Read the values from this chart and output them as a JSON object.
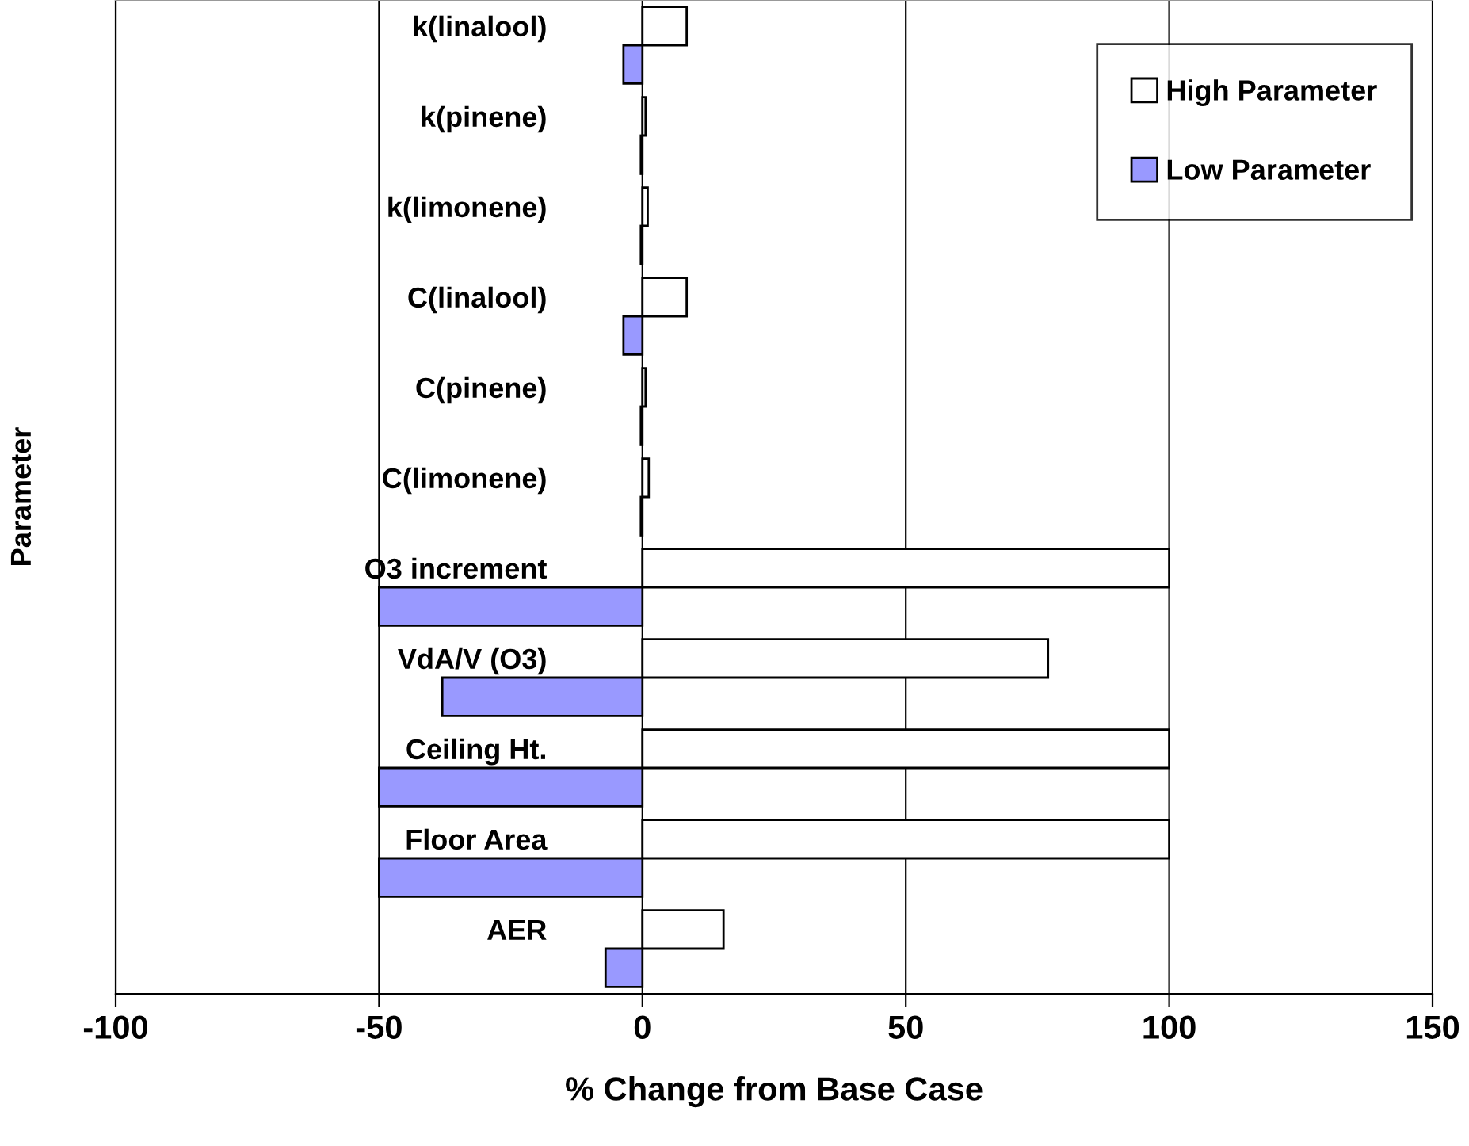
{
  "chart_data": {
    "type": "bar",
    "orientation": "horizontal",
    "xlabel": "% Change from Base Case",
    "ylabel": "Parameter",
    "categories": [
      "k(linalool)",
      "k(pinene)",
      "k(limonene)",
      "C(linalool)",
      "C(pinene)",
      "C(limonene)",
      "O3 increment",
      "VdA/V (O3)",
      "Ceiling Ht.",
      "Floor Area",
      "AER"
    ],
    "series": [
      {
        "name": "High Parameter",
        "color": "#ffffff",
        "values": [
          8.4,
          0.6,
          1,
          8.4,
          0.6,
          1.2,
          100,
          77,
          100,
          100,
          15.4
        ]
      },
      {
        "name": "Low Parameter",
        "color": "#9999ff",
        "values": [
          -3.6,
          -0.3,
          -0.3,
          -3.6,
          -0.3,
          -0.3,
          -50,
          -38,
          -50,
          -50,
          -7
        ]
      }
    ],
    "xlim": [
      -100,
      150
    ],
    "xticks": [
      -100,
      -50,
      0,
      50,
      100,
      150
    ],
    "grid": "x",
    "legend": "top right"
  }
}
